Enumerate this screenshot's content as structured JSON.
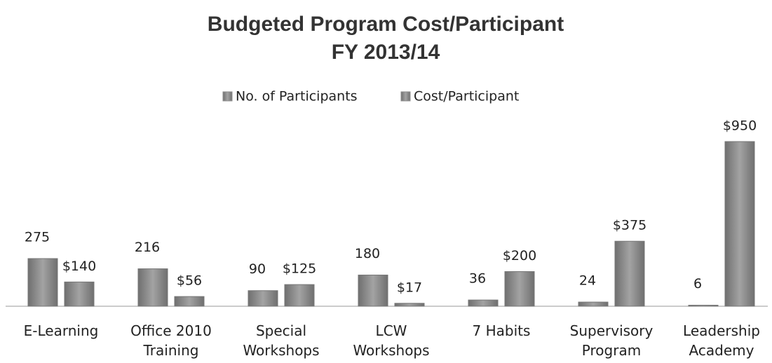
{
  "chart_data": {
    "type": "bar",
    "title": "Budgeted Program Cost/Participant",
    "subtitle": "FY 2013/14",
    "categories": [
      "E-Learning",
      "Office 2010 Training",
      "Special Workshops",
      "LCW Workshops",
      "7 Habits",
      "Supervisory Program",
      "Leadership Academy"
    ],
    "series": [
      {
        "name": "No. of Participants",
        "color": "#8e8e8e",
        "values": [
          275,
          216,
          90,
          180,
          36,
          24,
          6
        ]
      },
      {
        "name": "Cost/Participant",
        "color": "#8e8e8e",
        "values": [
          140,
          56,
          125,
          17,
          200,
          375,
          950
        ],
        "value_labels": [
          "$140",
          "$56",
          "$125",
          "$17",
          "$200",
          "$375",
          "$950"
        ]
      }
    ],
    "legend": "top"
  }
}
